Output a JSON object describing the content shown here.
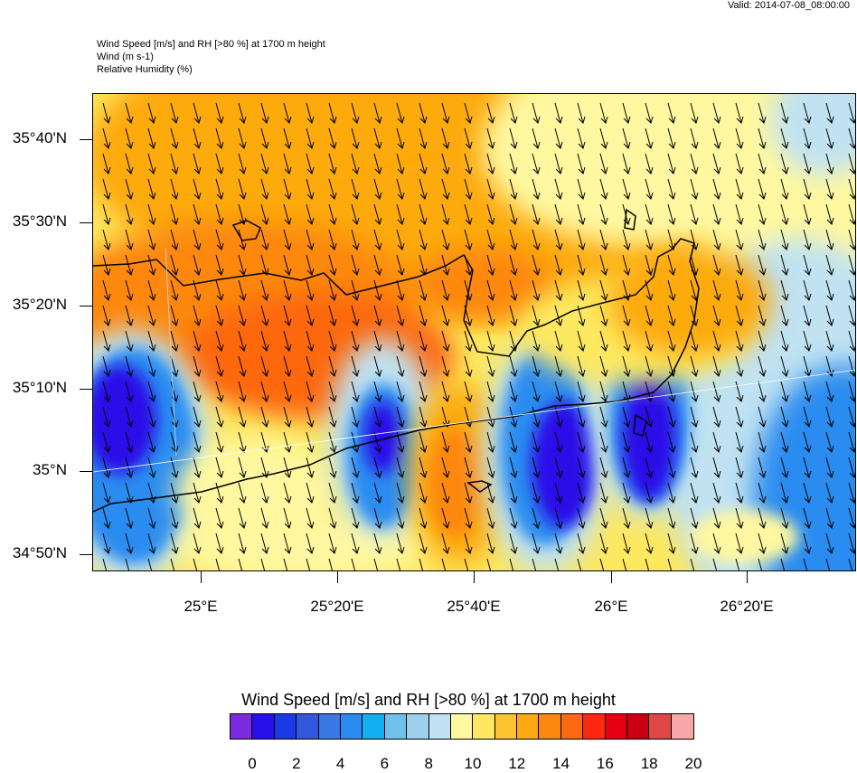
{
  "valid_time": "Valid: 2014-07-08_08:00:00",
  "titles": {
    "line1": "Wind Speed [m/s] and RH [>80 %] at 1700 m height",
    "line2": "Wind   (m s-1)",
    "line3": "Relative Humidity   (%)"
  },
  "axes": {
    "y_labels": [
      "35°40'N",
      "35°30'N",
      "35°20'N",
      "35°10'N",
      "35°N",
      "34°50'N"
    ],
    "x_labels": [
      "25°E",
      "25°20'E",
      "25°40'E",
      "26°E",
      "26°20'E"
    ]
  },
  "colorbar": {
    "title": "Wind Speed [m/s] and RH [>80 %] at 1700 m height",
    "labels": [
      "0",
      "2",
      "4",
      "6",
      "8",
      "10",
      "12",
      "14",
      "16",
      "18",
      "20"
    ],
    "colors": [
      "#7b2be0",
      "#2a10e8",
      "#1a3ae8",
      "#3358de",
      "#3a78e8",
      "#2a8cf0",
      "#12b0f0",
      "#70c0ec",
      "#9cd0ec",
      "#c0e2f2",
      "#fff8a0",
      "#fde860",
      "#fdc430",
      "#fdaa10",
      "#fd8810",
      "#fd6810",
      "#fd2810",
      "#e40010",
      "#c80010",
      "#e04848",
      "#f8a8a8"
    ]
  },
  "map": {
    "region": "Crete (eastern part)",
    "wind_direction": "north to south",
    "colors": {
      "high": "#fd8810",
      "mid": "#fdaa10",
      "yellow": "#fde860",
      "pale": "#fff8a0",
      "lightblue": "#c0e2f2",
      "blue": "#2a8cf0",
      "dark": "#2a10e8"
    }
  }
}
